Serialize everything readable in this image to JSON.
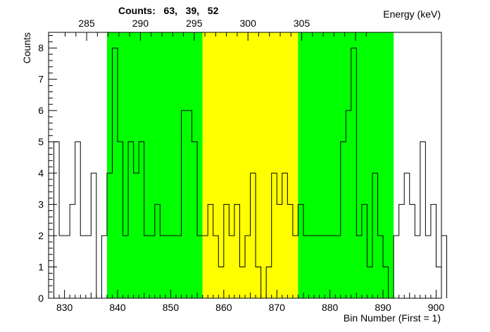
{
  "chart_data": {
    "type": "histogram",
    "title": "Counts:   63,   39,   52",
    "xlabel": "Bin Number (First = 1)",
    "ylabel": "Counts",
    "x2label": "Energy (keV)",
    "xlim": [
      827,
      901
    ],
    "ylim": [
      0,
      8.5
    ],
    "x_ticks": [
      830,
      840,
      850,
      860,
      870,
      880,
      890,
      900
    ],
    "y_ticks": [
      0,
      1,
      2,
      3,
      4,
      5,
      6,
      7,
      8
    ],
    "energy_ticks": [
      285,
      290,
      295,
      300,
      305
    ],
    "energy_calibration": {
      "e_at_830": 282.94,
      "kev_per_bin": 0.4937
    },
    "bin_start": 827,
    "counts": [
      0,
      5,
      2,
      2,
      3,
      5,
      2,
      2,
      4,
      0,
      2,
      4,
      8,
      5,
      2,
      5,
      4,
      5,
      2,
      2,
      3,
      2,
      2,
      2,
      2,
      6,
      6,
      5,
      2,
      2,
      3,
      2,
      1,
      3,
      2,
      3,
      1,
      2,
      4,
      1,
      0,
      1,
      4,
      3,
      4,
      3,
      2,
      3,
      2,
      2,
      2,
      2,
      2,
      2,
      2,
      5,
      6,
      8,
      2,
      3,
      1,
      4,
      2,
      1,
      0,
      2,
      3,
      4,
      3,
      2,
      5,
      2,
      3,
      1,
      2
    ],
    "regions": [
      {
        "name": "left-background",
        "from": 838,
        "to": 856,
        "color": "#00ff00"
      },
      {
        "name": "peak",
        "from": 856,
        "to": 874,
        "color": "#ffff00"
      },
      {
        "name": "right-background",
        "from": 874,
        "to": 892,
        "color": "#00ff00"
      }
    ],
    "region_counts": [
      63,
      39,
      52
    ],
    "grid": false,
    "legend": "none"
  }
}
